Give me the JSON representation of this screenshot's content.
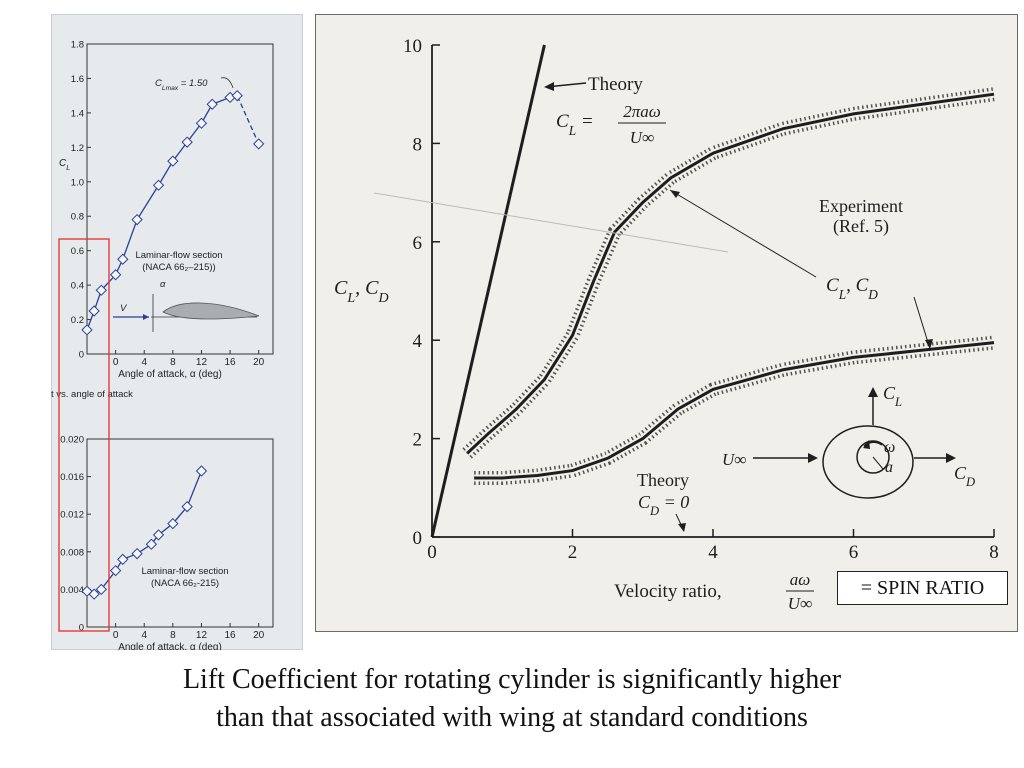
{
  "colors": {
    "left_bg": "#e6eaec",
    "right_bg": "#f1efe9",
    "blue_curve": "#2b3f9a",
    "dark_ink": "#1e1e1e",
    "red_box": "#e53935"
  },
  "chart_data": [
    {
      "type": "line",
      "ylabel": "C_L",
      "xlabel": "Angle of attack, α (deg)",
      "xlim": [
        -4,
        22
      ],
      "ylim": [
        0,
        1.8
      ],
      "x_ticks": [
        "0",
        "4",
        "8",
        "12",
        "16",
        "20"
      ],
      "y_ticks": [
        "0",
        "0.2",
        "0.4",
        "0.6",
        "0.8",
        "1.0",
        "1.2",
        "1.4",
        "1.6",
        "1.8"
      ],
      "x": [
        -4,
        -3,
        -2,
        0,
        1,
        3,
        6,
        8,
        10,
        12,
        13.5,
        16,
        17,
        20
      ],
      "y": [
        0.14,
        0.25,
        0.37,
        0.46,
        0.55,
        0.78,
        0.98,
        1.12,
        1.23,
        1.34,
        1.45,
        1.49,
        1.5,
        1.22
      ],
      "dashed_from_index": 11,
      "annotation": "C_Lmax = 1.50",
      "section_label_1": "Laminar-flow section",
      "section_label_2": "(NACA 66₂–215))",
      "vector_label": "V",
      "alpha_label": "α",
      "grid": false,
      "highlight_box": true
    },
    {
      "type": "line",
      "xlabel": "Angle of attack, α (deg)",
      "xlim": [
        -4,
        22
      ],
      "ylim": [
        0,
        0.02
      ],
      "x_ticks": [
        "0",
        "4",
        "8",
        "12",
        "16",
        "20"
      ],
      "y_ticks": [
        "0",
        "0.004",
        "0.008",
        "0.012",
        "0.016",
        "0.020"
      ],
      "x": [
        -4,
        -3,
        -2,
        0,
        1,
        3,
        5,
        6,
        8,
        10,
        12
      ],
      "y": [
        0.0038,
        0.0035,
        0.004,
        0.006,
        0.0072,
        0.0078,
        0.0088,
        0.0098,
        0.011,
        0.0128,
        0.0166
      ],
      "section_label_1": "Laminar-flow section",
      "section_label_2": "(NACA 66₂-215)",
      "partial_caption": "t vs. angle of attack",
      "grid": false
    },
    {
      "type": "line",
      "xlabel": "Velocity ratio,",
      "xlabel_fraction_num": "aω",
      "xlabel_fraction_den": "U∞",
      "ylabel": "C_L, C_D",
      "xlim": [
        0,
        8
      ],
      "ylim": [
        0,
        10
      ],
      "x_ticks": [
        "0",
        "2",
        "4",
        "6",
        "8"
      ],
      "y_ticks": [
        "0",
        "2",
        "4",
        "6",
        "8",
        "10"
      ],
      "series": [
        {
          "name": "Theory",
          "formula_lhs": "C_L",
          "formula_num": "2πaω",
          "formula_den": "U∞",
          "x": [
            0,
            1.6
          ],
          "y": [
            0,
            10
          ]
        },
        {
          "name": "C_L",
          "x": [
            0.5,
            0.8,
            1.2,
            1.6,
            2.0,
            2.3,
            2.6,
            3.0,
            3.4,
            4.0,
            5.0,
            6.0,
            7.0,
            8.0
          ],
          "y": [
            1.7,
            2.1,
            2.6,
            3.2,
            4.1,
            5.2,
            6.2,
            6.8,
            7.3,
            7.8,
            8.3,
            8.6,
            8.8,
            9.0
          ]
        },
        {
          "name": "C_D",
          "x": [
            0.6,
            1.0,
            1.5,
            2.0,
            2.5,
            3.0,
            3.5,
            4.0,
            5.0,
            6.0,
            7.0,
            8.0
          ],
          "y": [
            1.2,
            1.2,
            1.25,
            1.35,
            1.6,
            2.0,
            2.6,
            3.0,
            3.4,
            3.65,
            3.8,
            3.95
          ]
        }
      ],
      "labels": {
        "theory": "Theory",
        "experiment_1": "Experiment",
        "experiment_2": "(Ref. 5)",
        "cl_cd": "C_L, C_D",
        "theory_cd_1": "Theory",
        "theory_cd_2": "C_D = 0",
        "inset_u": "U∞",
        "inset_cl": "C_L",
        "inset_cd": "C_D",
        "inset_omega": "ω",
        "inset_a": "a"
      }
    }
  ],
  "spin_box": "= SPIN RATIO",
  "caption_line1": "Lift Coefficient for rotating cylinder is significantly higher",
  "caption_line2": "than that associated with wing at standard conditions"
}
